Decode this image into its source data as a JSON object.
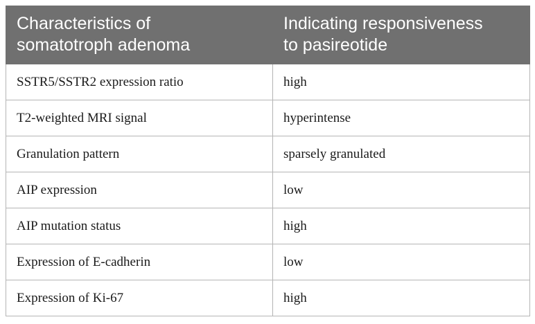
{
  "table": {
    "headers": [
      [
        "Characteristics of",
        "somatotroph adenoma"
      ],
      [
        "Indicating responsiveness",
        "to pasireotide"
      ]
    ],
    "rows": [
      [
        "SSTR5/SSTR2 expression ratio",
        "high"
      ],
      [
        "T2-weighted MRI signal",
        "hyperintense"
      ],
      [
        "Granulation pattern",
        "sparsely granulated"
      ],
      [
        "AIP expression",
        "low"
      ],
      [
        "AIP mutation status",
        "high"
      ],
      [
        "Expression of E-cadherin",
        "low"
      ],
      [
        "Expression of Ki-67",
        "high"
      ]
    ]
  },
  "colors": {
    "header_background": "#707070",
    "header_text": "#ffffff",
    "border": "#b4b4b4"
  }
}
